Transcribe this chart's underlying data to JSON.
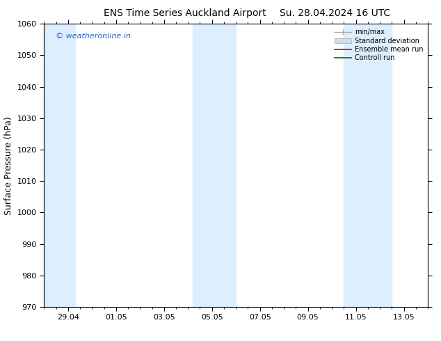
{
  "title": "ENS Time Series Auckland Airport",
  "title2": "Su. 28.04.2024 16 UTC",
  "ylabel": "Surface Pressure (hPa)",
  "ylim": [
    970,
    1060
  ],
  "yticks": [
    970,
    980,
    990,
    1000,
    1010,
    1020,
    1030,
    1040,
    1050,
    1060
  ],
  "xtick_labels": [
    "29.04",
    "01.05",
    "03.05",
    "05.05",
    "07.05",
    "09.05",
    "11.05",
    "13.05"
  ],
  "xtick_positions": [
    1,
    3,
    5,
    7,
    9,
    11,
    13,
    15
  ],
  "xlim": [
    0,
    16
  ],
  "shaded_bands": [
    {
      "x_start": 0,
      "x_end": 1.3,
      "color": "#ddeeff"
    },
    {
      "x_start": 6.2,
      "x_end": 8.0,
      "color": "#ddeeff"
    },
    {
      "x_start": 12.5,
      "x_end": 14.5,
      "color": "#ddeeff"
    }
  ],
  "background_color": "#ffffff",
  "watermark_text": "© weatheronline.in",
  "watermark_color": "#2266cc",
  "legend_items": [
    {
      "label": "min/max",
      "color": "#aaaaaa",
      "type": "errorbar"
    },
    {
      "label": "Standard deviation",
      "color": "#cce0f0",
      "type": "box"
    },
    {
      "label": "Ensemble mean run",
      "color": "#dd0000",
      "type": "line"
    },
    {
      "label": "Controll run",
      "color": "#006600",
      "type": "line"
    }
  ],
  "title_fontsize": 10,
  "axis_label_fontsize": 9,
  "tick_fontsize": 8
}
